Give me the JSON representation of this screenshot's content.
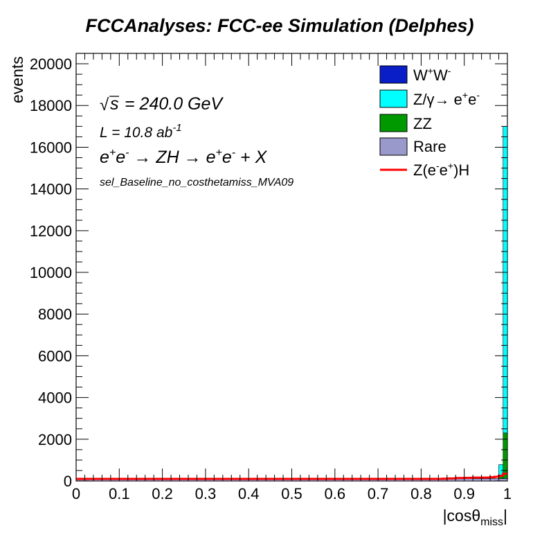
{
  "chart_data": {
    "type": "bar",
    "title": "FCCAnalyses: FCC-ee Simulation (Delphes)",
    "xlabel": "|cosθ",
    "xlabel_sub": "miss",
    "xlabel_end": "|",
    "ylabel": "events",
    "xlim": [
      0,
      1
    ],
    "ylim": [
      0,
      20500
    ],
    "x_ticks": [
      "0",
      "0.1",
      "0.2",
      "0.3",
      "0.4",
      "0.5",
      "0.6",
      "0.7",
      "0.8",
      "0.9",
      "1"
    ],
    "y_ticks": [
      "0",
      "2000",
      "4000",
      "6000",
      "8000",
      "10000",
      "12000",
      "14000",
      "16000",
      "18000",
      "20000"
    ],
    "annotations": {
      "sqrt_s": "= 240.0 GeV",
      "lumi_base": "L = 10.8 ab",
      "lumi_exp": "-1",
      "selection": "sel_Baseline_no_costhetamiss_MVA09"
    },
    "legend": [
      {
        "key": "ww",
        "color": "#0a1ec8",
        "type": "box"
      },
      {
        "key": "zgamma",
        "color": "#00ffff",
        "type": "box"
      },
      {
        "key": "zz",
        "color": "#009900",
        "type": "box",
        "label": "ZZ"
      },
      {
        "key": "rare",
        "color": "#9999cc",
        "type": "box",
        "label": "Rare"
      },
      {
        "key": "signal",
        "color": "#ff0000",
        "type": "line"
      }
    ],
    "series": [
      {
        "stack_order": 0,
        "color": "#9999cc",
        "bins": [
          [
            0.98,
            1.0,
            40
          ]
        ]
      },
      {
        "stack_order": 1,
        "color": "#0a1ec8",
        "bins": [
          [
            0.98,
            1.0,
            20
          ]
        ]
      },
      {
        "stack_order": 2,
        "color": "#009900",
        "bins": [
          [
            0.96,
            0.98,
            40
          ],
          [
            0.98,
            0.99,
            280
          ],
          [
            0.99,
            1.0,
            2300
          ]
        ]
      },
      {
        "stack_order": 3,
        "color": "#00ffff",
        "bins": [
          [
            0.96,
            0.98,
            60
          ],
          [
            0.98,
            0.99,
            500
          ],
          [
            0.99,
            1.0,
            14700
          ]
        ]
      }
    ],
    "signal": {
      "color": "#ff0000",
      "x": [
        0,
        0.8,
        0.85,
        0.86,
        0.88,
        0.9,
        0.92,
        0.94,
        0.96,
        0.97,
        0.98,
        0.99,
        1.0
      ],
      "values": [
        100,
        100,
        110,
        120,
        140,
        150,
        160,
        160,
        180,
        200,
        250,
        350,
        480
      ]
    },
    "base_level": 110
  }
}
